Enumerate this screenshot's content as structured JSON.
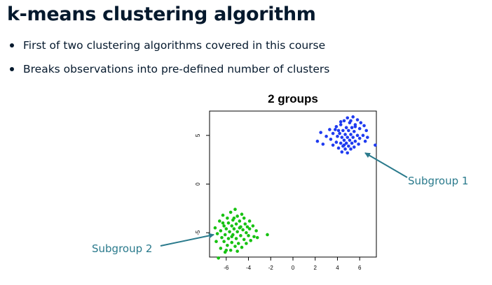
{
  "slide": {
    "title": "k-means clustering algorithm",
    "bullets": [
      "First of two clustering algorithms covered in this course",
      "Breaks observations into pre-defined number of clusters"
    ]
  },
  "chart_data": {
    "type": "scatter",
    "title": "2 groups",
    "xlabel": "",
    "ylabel": "",
    "xlim": [
      -7.5,
      7.5
    ],
    "ylim": [
      -7.5,
      7.5
    ],
    "xticks": [
      -6,
      -4,
      -2,
      0,
      2,
      4,
      6
    ],
    "yticks": [
      -5,
      0,
      5
    ],
    "grid": false,
    "legend": "none",
    "series": [
      {
        "color": "#1f3bf0",
        "points": [
          [
            4.9,
            6.8
          ],
          [
            5.4,
            6.9
          ],
          [
            5.8,
            6.6
          ],
          [
            4.6,
            6.5
          ],
          [
            5.1,
            6.3
          ],
          [
            6.1,
            6.3
          ],
          [
            4.3,
            6.1
          ],
          [
            5.6,
            6.1
          ],
          [
            6.4,
            6.0
          ],
          [
            3.9,
            5.9
          ],
          [
            4.8,
            5.8
          ],
          [
            5.3,
            5.8
          ],
          [
            6.0,
            5.7
          ],
          [
            3.3,
            5.6
          ],
          [
            4.1,
            5.5
          ],
          [
            4.5,
            5.5
          ],
          [
            5.0,
            5.5
          ],
          [
            5.5,
            5.4
          ],
          [
            6.6,
            5.5
          ],
          [
            2.5,
            5.3
          ],
          [
            3.6,
            5.2
          ],
          [
            4.2,
            5.2
          ],
          [
            4.7,
            5.1
          ],
          [
            5.2,
            5.1
          ],
          [
            5.8,
            5.0
          ],
          [
            6.3,
            5.0
          ],
          [
            3.0,
            4.9
          ],
          [
            4.0,
            4.9
          ],
          [
            4.4,
            4.8
          ],
          [
            4.9,
            4.8
          ],
          [
            5.4,
            4.8
          ],
          [
            6.0,
            4.7
          ],
          [
            3.4,
            4.6
          ],
          [
            4.6,
            4.5
          ],
          [
            5.1,
            4.5
          ],
          [
            5.6,
            4.4
          ],
          [
            6.5,
            4.4
          ],
          [
            2.2,
            4.4
          ],
          [
            3.9,
            4.3
          ],
          [
            4.3,
            4.2
          ],
          [
            4.8,
            4.2
          ],
          [
            5.3,
            4.2
          ],
          [
            5.9,
            4.1
          ],
          [
            2.7,
            4.1
          ],
          [
            3.6,
            4.0
          ],
          [
            4.5,
            3.9
          ],
          [
            5.0,
            3.9
          ],
          [
            5.5,
            3.8
          ],
          [
            4.1,
            3.7
          ],
          [
            4.7,
            3.6
          ],
          [
            5.2,
            3.6
          ],
          [
            7.4,
            4.0
          ],
          [
            4.4,
            3.3
          ],
          [
            4.9,
            3.2
          ],
          [
            5.6,
            5.9
          ],
          [
            4.3,
            6.4
          ],
          [
            6.7,
            4.8
          ],
          [
            3.8,
            5.6
          ],
          [
            5.2,
            6.5
          ],
          [
            4.6,
            4.0
          ]
        ]
      },
      {
        "color": "#17c212",
        "points": [
          [
            -5.2,
            -2.6
          ],
          [
            -5.6,
            -2.9
          ],
          [
            -4.6,
            -3.1
          ],
          [
            -6.3,
            -3.2
          ],
          [
            -5.0,
            -3.3
          ],
          [
            -5.9,
            -3.5
          ],
          [
            -4.4,
            -3.5
          ],
          [
            -5.4,
            -3.7
          ],
          [
            -6.6,
            -3.8
          ],
          [
            -4.8,
            -3.8
          ],
          [
            -3.9,
            -3.8
          ],
          [
            -5.8,
            -4.0
          ],
          [
            -5.1,
            -4.1
          ],
          [
            -4.3,
            -4.1
          ],
          [
            -6.2,
            -4.3
          ],
          [
            -5.5,
            -4.3
          ],
          [
            -4.7,
            -4.4
          ],
          [
            -3.6,
            -4.3
          ],
          [
            -7.0,
            -4.5
          ],
          [
            -6.0,
            -4.6
          ],
          [
            -5.3,
            -4.6
          ],
          [
            -4.5,
            -4.7
          ],
          [
            -3.9,
            -4.6
          ],
          [
            -3.3,
            -4.8
          ],
          [
            -6.5,
            -4.8
          ],
          [
            -5.7,
            -4.9
          ],
          [
            -5.0,
            -4.9
          ],
          [
            -4.2,
            -5.0
          ],
          [
            -2.3,
            -5.2
          ],
          [
            -6.8,
            -5.1
          ],
          [
            -6.1,
            -5.2
          ],
          [
            -5.4,
            -5.2
          ],
          [
            -4.7,
            -5.3
          ],
          [
            -4.0,
            -5.3
          ],
          [
            -3.5,
            -5.4
          ],
          [
            -6.4,
            -5.5
          ],
          [
            -5.8,
            -5.6
          ],
          [
            -5.1,
            -5.6
          ],
          [
            -4.4,
            -5.7
          ],
          [
            -3.8,
            -5.8
          ],
          [
            -6.9,
            -5.9
          ],
          [
            -6.2,
            -5.9
          ],
          [
            -5.5,
            -6.0
          ],
          [
            -4.9,
            -6.1
          ],
          [
            -4.2,
            -6.1
          ],
          [
            -5.9,
            -6.3
          ],
          [
            -5.2,
            -6.4
          ],
          [
            -4.6,
            -6.5
          ],
          [
            -6.5,
            -6.6
          ],
          [
            -5.6,
            -6.8
          ],
          [
            -5.0,
            -6.9
          ],
          [
            -6.1,
            -7.0
          ],
          [
            -6.7,
            -7.6
          ],
          [
            -4.8,
            -4.5
          ],
          [
            -5.5,
            -5.4
          ],
          [
            -4.1,
            -4.4
          ],
          [
            -6.3,
            -4.0
          ],
          [
            -3.2,
            -5.5
          ],
          [
            -5.3,
            -3.5
          ],
          [
            -6.0,
            -6.8
          ]
        ]
      }
    ],
    "annotations": [
      {
        "text": "Subgroup 1",
        "color": "#2a7a8c"
      },
      {
        "text": "Subgroup 2",
        "color": "#2a7a8c"
      }
    ]
  }
}
